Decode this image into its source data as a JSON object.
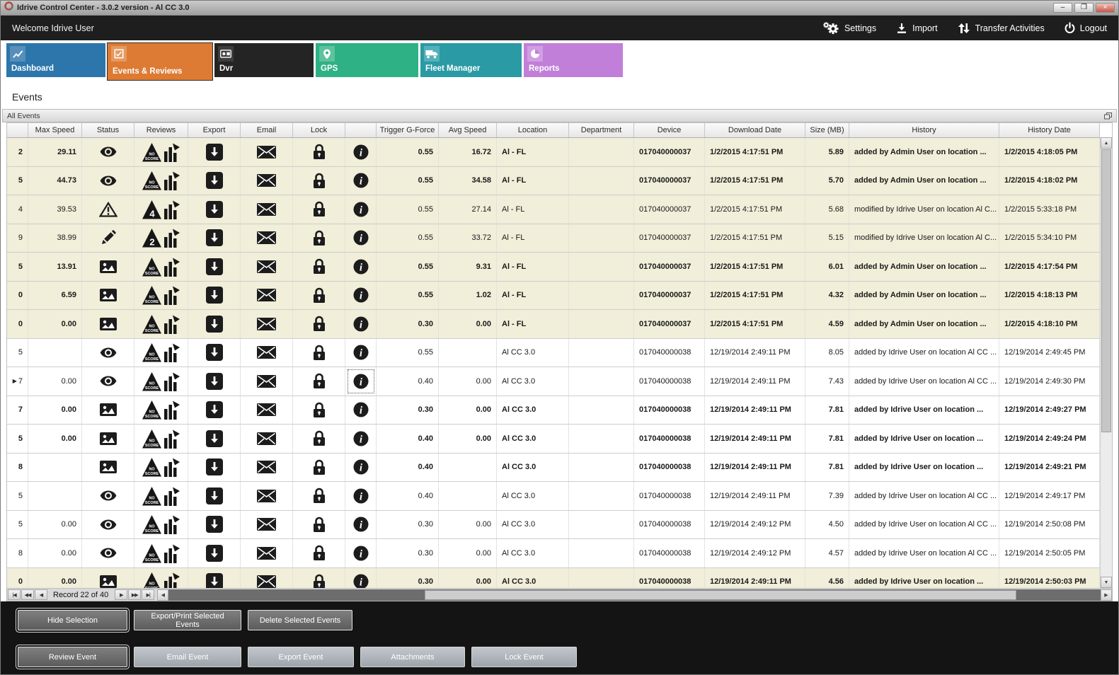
{
  "window": {
    "title": "Idrive Control Center - 3.0.2 version - Al CC 3.0",
    "controls": [
      {
        "name": "minimize",
        "glyph": "–"
      },
      {
        "name": "maximize",
        "glyph": "❐"
      },
      {
        "name": "close",
        "glyph": "×"
      }
    ]
  },
  "toolbar": {
    "welcome": "Welcome Idrive User",
    "actions": [
      {
        "label": "Settings",
        "icon": "gear",
        "name": "settings-button"
      },
      {
        "label": "Import",
        "icon": "import",
        "name": "import-button"
      },
      {
        "label": "Transfer Activities",
        "icon": "transfer",
        "name": "transfer-activities-button"
      },
      {
        "label": "Logout",
        "icon": "power",
        "name": "logout-button"
      }
    ]
  },
  "tabs": [
    {
      "label": "Dashboard",
      "icon": "line-chart",
      "color": "#2d76ab",
      "icon_bg": "#558fba",
      "selected": false
    },
    {
      "label": "Events & Reviews",
      "icon": "event-review",
      "color": "#dd7a33",
      "icon_bg": "#e5995f",
      "selected": true
    },
    {
      "label": "Dvr",
      "icon": "dvr",
      "color": "#242424",
      "icon_bg": "#3d3d3d",
      "selected": false
    },
    {
      "label": "GPS",
      "icon": "map-pin",
      "color": "#2eb184",
      "icon_bg": "#5ec29f",
      "selected": false
    },
    {
      "label": "Fleet Manager",
      "icon": "truck",
      "color": "#2a9aa4",
      "icon_bg": "#55b1b9",
      "selected": false
    },
    {
      "label": "Reports",
      "icon": "pie-chart",
      "color": "#c17fd9",
      "icon_bg": "#d09ee3",
      "selected": false
    }
  ],
  "page": {
    "section_title": "Events",
    "panel_title": "All Events"
  },
  "colors": {
    "highlight_row": "#f1eed9",
    "toolbar_bg": "#1e1e1e",
    "footer_bg": "#141414"
  },
  "table": {
    "columns": [
      {
        "key": "id_fragment",
        "label": ""
      },
      {
        "key": "max_speed",
        "label": "Max Speed"
      },
      {
        "key": "status",
        "label": "Status"
      },
      {
        "key": "reviews",
        "label": "Reviews"
      },
      {
        "key": "export",
        "label": "Export"
      },
      {
        "key": "email",
        "label": "Email"
      },
      {
        "key": "lock",
        "label": "Lock"
      },
      {
        "key": "info",
        "label": ""
      },
      {
        "key": "trigger_g",
        "label": "Trigger G-Force"
      },
      {
        "key": "avg_speed",
        "label": "Avg Speed"
      },
      {
        "key": "location",
        "label": "Location"
      },
      {
        "key": "department",
        "label": "Department"
      },
      {
        "key": "device",
        "label": "Device"
      },
      {
        "key": "download_date",
        "label": "Download Date"
      },
      {
        "key": "size_mb",
        "label": "Size (MB)"
      },
      {
        "key": "history",
        "label": "History"
      },
      {
        "key": "history_date",
        "label": "History Date"
      }
    ],
    "rows": [
      {
        "id_fragment": "2",
        "max_speed": "29.11",
        "status_icon": "eye",
        "review_badge": "NO SCORE",
        "trigger_g": "0.55",
        "avg_speed": "16.72",
        "location": "Al - FL",
        "department": "",
        "device": "017040000037",
        "download_date": "1/2/2015 4:17:51 PM",
        "size_mb": "5.89",
        "history": "added by Admin User on location ...",
        "history_date": "1/2/2015 4:18:05 PM",
        "bold": true,
        "highlight": true
      },
      {
        "id_fragment": "5",
        "max_speed": "44.73",
        "status_icon": "eye",
        "review_badge": "NO SCORE",
        "trigger_g": "0.55",
        "avg_speed": "34.58",
        "location": "Al - FL",
        "department": "",
        "device": "017040000037",
        "download_date": "1/2/2015 4:17:51 PM",
        "size_mb": "5.70",
        "history": "added by Admin User on location ...",
        "history_date": "1/2/2015 4:18:02 PM",
        "bold": true,
        "highlight": true
      },
      {
        "id_fragment": "4",
        "max_speed": "39.53",
        "status_icon": "warning",
        "review_badge": "4",
        "trigger_g": "0.55",
        "avg_speed": "27.14",
        "location": "Al - FL",
        "department": "",
        "device": "017040000037",
        "download_date": "1/2/2015 4:17:51 PM",
        "size_mb": "5.68",
        "history": "modified by Idrive User on location Al C...",
        "history_date": "1/2/2015 5:33:18 PM",
        "bold": false,
        "highlight": true
      },
      {
        "id_fragment": "9",
        "max_speed": "38.99",
        "status_icon": "pencil",
        "review_badge": "2",
        "trigger_g": "0.55",
        "avg_speed": "33.72",
        "location": "Al - FL",
        "department": "",
        "device": "017040000037",
        "download_date": "1/2/2015 4:17:51 PM",
        "size_mb": "5.15",
        "history": "modified by Idrive User on location Al C...",
        "history_date": "1/2/2015 5:34:10 PM",
        "bold": false,
        "highlight": true
      },
      {
        "id_fragment": "5",
        "max_speed": "13.91",
        "status_icon": "image",
        "review_badge": "NO SCORE",
        "trigger_g": "0.55",
        "avg_speed": "9.31",
        "location": "Al - FL",
        "department": "",
        "device": "017040000037",
        "download_date": "1/2/2015 4:17:51 PM",
        "size_mb": "6.01",
        "history": "added by Admin User on location ...",
        "history_date": "1/2/2015 4:17:54 PM",
        "bold": true,
        "highlight": true
      },
      {
        "id_fragment": "0",
        "max_speed": "6.59",
        "status_icon": "image",
        "review_badge": "NO SCORE",
        "trigger_g": "0.55",
        "avg_speed": "1.02",
        "location": "Al - FL",
        "department": "",
        "device": "017040000037",
        "download_date": "1/2/2015 4:17:51 PM",
        "size_mb": "4.32",
        "history": "added by Admin User on location ...",
        "history_date": "1/2/2015 4:18:13 PM",
        "bold": true,
        "highlight": true
      },
      {
        "id_fragment": "0",
        "max_speed": "0.00",
        "status_icon": "image",
        "review_badge": "NO SCORE",
        "trigger_g": "0.30",
        "avg_speed": "0.00",
        "location": "Al - FL",
        "department": "",
        "device": "017040000037",
        "download_date": "1/2/2015 4:17:51 PM",
        "size_mb": "4.59",
        "history": "added by Admin User on location ...",
        "history_date": "1/2/2015 4:18:10 PM",
        "bold": true,
        "highlight": true
      },
      {
        "id_fragment": "5",
        "max_speed": "",
        "status_icon": "eye",
        "review_badge": "NO SCORE",
        "trigger_g": "0.55",
        "avg_speed": "",
        "location": "Al CC 3.0",
        "department": "",
        "device": "017040000038",
        "download_date": "12/19/2014 2:49:11 PM",
        "size_mb": "8.05",
        "history": "added by Idrive User on location Al CC ...",
        "history_date": "12/19/2014 2:49:45 PM",
        "bold": false,
        "highlight": false
      },
      {
        "id_fragment": "7",
        "row_indicator": true,
        "max_speed": "0.00",
        "status_icon": "eye",
        "review_badge": "NO SCORE",
        "trigger_g": "0.40",
        "avg_speed": "0.00",
        "location": "Al CC 3.0",
        "department": "",
        "device": "017040000038",
        "download_date": "12/19/2014 2:49:11 PM",
        "size_mb": "7.43",
        "history": "added by Idrive User on location Al CC ...",
        "history_date": "12/19/2014 2:49:30 PM",
        "bold": false,
        "highlight": false,
        "selected_cell": "info"
      },
      {
        "id_fragment": "7",
        "max_speed": "0.00",
        "status_icon": "image",
        "review_badge": "NO SCORE",
        "trigger_g": "0.30",
        "avg_speed": "0.00",
        "location": "Al CC 3.0",
        "department": "",
        "device": "017040000038",
        "download_date": "12/19/2014 2:49:11 PM",
        "size_mb": "7.81",
        "history": "added by Idrive User on location ...",
        "history_date": "12/19/2014 2:49:27 PM",
        "bold": true,
        "highlight": false
      },
      {
        "id_fragment": "5",
        "max_speed": "0.00",
        "status_icon": "image",
        "review_badge": "NO SCORE",
        "trigger_g": "0.40",
        "avg_speed": "0.00",
        "location": "Al CC 3.0",
        "department": "",
        "device": "017040000038",
        "download_date": "12/19/2014 2:49:11 PM",
        "size_mb": "7.81",
        "history": "added by Idrive User on location ...",
        "history_date": "12/19/2014 2:49:24 PM",
        "bold": true,
        "highlight": false
      },
      {
        "id_fragment": "8",
        "max_speed": "",
        "status_icon": "image",
        "review_badge": "NO SCORE",
        "trigger_g": "0.40",
        "avg_speed": "",
        "location": "Al CC 3.0",
        "department": "",
        "device": "017040000038",
        "download_date": "12/19/2014 2:49:11 PM",
        "size_mb": "7.81",
        "history": "added by Idrive User on location ...",
        "history_date": "12/19/2014 2:49:21 PM",
        "bold": true,
        "highlight": false
      },
      {
        "id_fragment": "5",
        "max_speed": "",
        "status_icon": "eye",
        "review_badge": "NO SCORE",
        "trigger_g": "0.40",
        "avg_speed": "",
        "location": "Al CC 3.0",
        "department": "",
        "device": "017040000038",
        "download_date": "12/19/2014 2:49:11 PM",
        "size_mb": "7.39",
        "history": "added by Idrive User on location Al CC ...",
        "history_date": "12/19/2014 2:49:17 PM",
        "bold": false,
        "highlight": false
      },
      {
        "id_fragment": "5",
        "max_speed": "0.00",
        "status_icon": "eye",
        "review_badge": "NO SCORE",
        "trigger_g": "0.30",
        "avg_speed": "0.00",
        "location": "Al CC 3.0",
        "department": "",
        "device": "017040000038",
        "download_date": "12/19/2014 2:49:12 PM",
        "size_mb": "4.50",
        "history": "added by Idrive User on location Al CC ...",
        "history_date": "12/19/2014 2:50:08 PM",
        "bold": false,
        "highlight": false
      },
      {
        "id_fragment": "8",
        "max_speed": "0.00",
        "status_icon": "eye",
        "review_badge": "NO SCORE",
        "trigger_g": "0.30",
        "avg_speed": "0.00",
        "location": "Al CC 3.0",
        "department": "",
        "device": "017040000038",
        "download_date": "12/19/2014 2:49:12 PM",
        "size_mb": "4.57",
        "history": "added by Idrive User on location Al CC ...",
        "history_date": "12/19/2014 2:50:05 PM",
        "bold": false,
        "highlight": false
      },
      {
        "id_fragment": "0",
        "max_speed": "0.00",
        "status_icon": "image",
        "review_badge": "NO SCORE",
        "trigger_g": "0.30",
        "avg_speed": "0.00",
        "location": "Al CC 3.0",
        "department": "",
        "device": "017040000038",
        "download_date": "12/19/2014 2:49:11 PM",
        "size_mb": "4.56",
        "history": "added by Idrive User on location ...",
        "history_date": "12/19/2014 2:50:03 PM",
        "bold": true,
        "highlight": true
      }
    ]
  },
  "pager": {
    "nav_left": [
      "|◀",
      "◀◀",
      "◀"
    ],
    "record_label": "Record 22 of 40",
    "nav_right": [
      "▶",
      "▶▶",
      "▶|"
    ]
  },
  "scrollbar": {
    "up": "▲",
    "down": "▼",
    "left": "◀",
    "right": "▶"
  },
  "footer": {
    "primary": [
      {
        "label": "Hide Selection",
        "focused": true
      },
      {
        "label": "Export/Print Selected Events",
        "focused": false
      },
      {
        "label": "Delete Selected Events",
        "focused": false
      }
    ],
    "secondary": [
      {
        "label": "Review Event",
        "focused": true
      },
      {
        "label": "Email Event",
        "focused": false
      },
      {
        "label": "Export Event",
        "focused": false
      },
      {
        "label": "Attachments",
        "focused": false
      },
      {
        "label": "Lock Event",
        "focused": false
      }
    ]
  }
}
